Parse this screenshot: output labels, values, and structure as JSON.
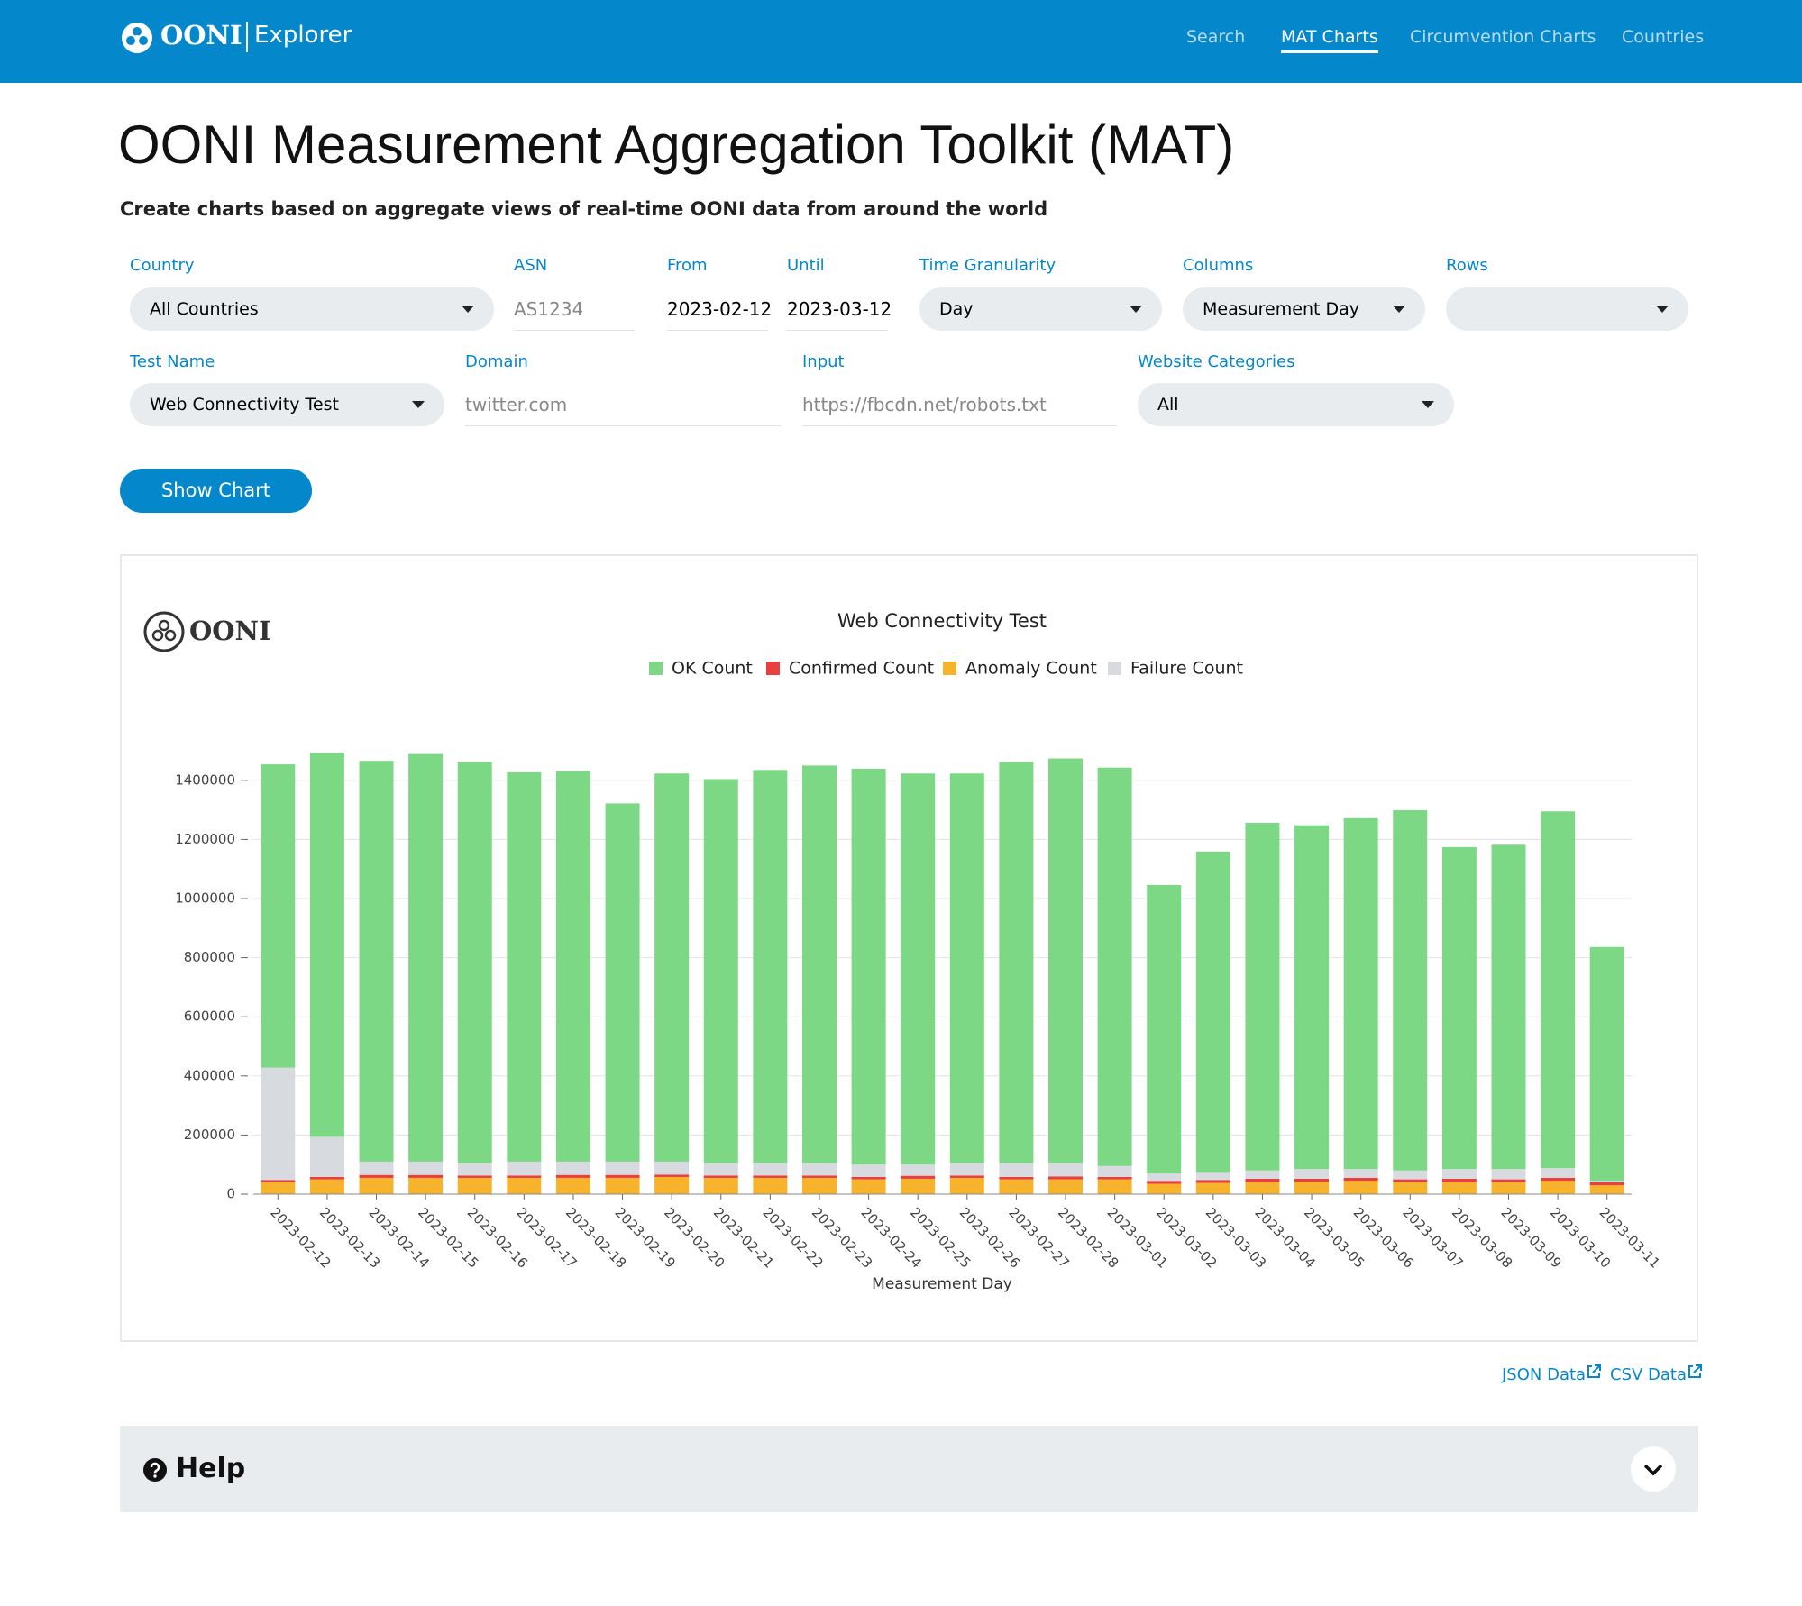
{
  "nav": {
    "logo": "OONI",
    "product": "Explorer",
    "links": [
      "Search",
      "MAT Charts",
      "Circumvention Charts",
      "Countries"
    ]
  },
  "header": {
    "title": "OONI Measurement Aggregation Toolkit (MAT)",
    "subtitle": "Create charts based on aggregate views of real-time OONI data from around the world"
  },
  "form": {
    "fields": [
      {
        "label": "Country",
        "value": "All Countries"
      },
      {
        "label": "ASN",
        "value": "AS1234"
      },
      {
        "label": "From",
        "value": "2023-02-12"
      },
      {
        "label": "Until",
        "value": "2023-03-12"
      },
      {
        "label": "Time Granularity",
        "value": "Day"
      },
      {
        "label": "Columns",
        "value": "Measurement Day"
      },
      {
        "label": "Rows"
      },
      {
        "label": "Test Name",
        "value": "Web Connectivity Test"
      },
      {
        "label": "Domain",
        "value": "twitter.com"
      },
      {
        "label": "Input",
        "value": "https://fbcdn.net/robots.txt"
      },
      {
        "label": "Website Categories",
        "value": "All"
      }
    ],
    "button": "Show Chart"
  },
  "chart_watermark": "OONI",
  "chart_data": {
    "type": "stacked_bar",
    "title": "Web Connectivity Test",
    "xlabel": "Measurement Day",
    "categories": [
      "2023-02-12",
      "2023-02-13",
      "2023-02-14",
      "2023-02-15",
      "2023-02-16",
      "2023-02-17",
      "2023-02-18",
      "2023-02-19",
      "2023-02-20",
      "2023-02-21",
      "2023-02-22",
      "2023-02-23",
      "2023-02-24",
      "2023-02-25",
      "2023-02-26",
      "2023-02-27",
      "2023-02-28",
      "2023-03-01",
      "2023-03-02",
      "2023-03-03",
      "2023-03-04",
      "2023-03-05",
      "2023-03-06",
      "2023-03-07",
      "2023-03-08",
      "2023-03-09",
      "2023-03-10",
      "2023-03-11"
    ],
    "series": [
      {
        "name": "OK Count",
        "color": "#7dd886",
        "values": [
          1026000,
          1299000,
          1356000,
          1379000,
          1357000,
          1317000,
          1321000,
          1212000,
          1313000,
          1299000,
          1330000,
          1345000,
          1339000,
          1323000,
          1318000,
          1357000,
          1369000,
          1348000,
          976000,
          1084000,
          1176000,
          1163000,
          1187000,
          1219000,
          1089000,
          1097000,
          1207000,
          791000
        ]
      },
      {
        "name": "Confirmed Count",
        "color": "#e8403f",
        "values": [
          8000,
          8000,
          10000,
          10000,
          8000,
          8000,
          10000,
          10000,
          8000,
          8000,
          8000,
          8000,
          8000,
          10000,
          8000,
          8000,
          10000,
          8000,
          10000,
          10000,
          12000,
          10000,
          10000,
          10000,
          12000,
          10000,
          10000,
          10000
        ]
      },
      {
        "name": "Anomaly Count",
        "color": "#f7b32b",
        "values": [
          40000,
          50000,
          55000,
          55000,
          55000,
          55000,
          55000,
          55000,
          58000,
          55000,
          55000,
          55000,
          50000,
          52000,
          55000,
          50000,
          50000,
          50000,
          35000,
          38000,
          40000,
          42000,
          45000,
          40000,
          40000,
          40000,
          45000,
          30000
        ]
      },
      {
        "name": "Failure Count",
        "color": "#d7dade",
        "values": [
          380000,
          136000,
          45000,
          45000,
          42000,
          47000,
          45000,
          45000,
          44000,
          42000,
          42000,
          42000,
          42000,
          38000,
          42000,
          47000,
          45000,
          37000,
          25000,
          27000,
          28000,
          33000,
          30000,
          30000,
          33000,
          35000,
          33000,
          5000
        ]
      }
    ],
    "ylim": [
      0,
      1500000
    ],
    "yticks": [
      0,
      200000,
      400000,
      600000,
      800000,
      1000000,
      1200000,
      1400000
    ],
    "grid": true,
    "legend": "top"
  },
  "links": [
    "JSON Data",
    "CSV Data"
  ],
  "help": "Help"
}
